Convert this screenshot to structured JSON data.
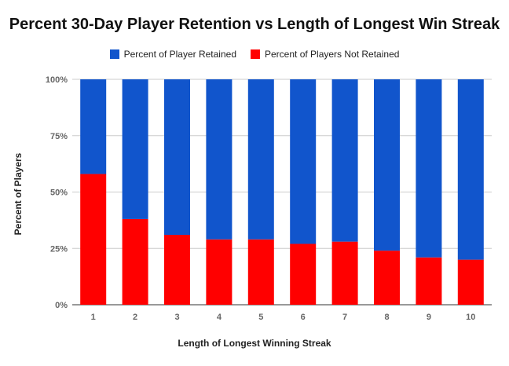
{
  "chart_data": {
    "type": "bar",
    "stacked": true,
    "title": "Percent 30-Day Player Retention vs Length of Longest Win Streak",
    "xlabel": "Length of Longest Winning Streak",
    "ylabel": "Percent of Players",
    "categories": [
      "1",
      "2",
      "3",
      "4",
      "5",
      "6",
      "7",
      "8",
      "9",
      "10"
    ],
    "yticks": [
      "0%",
      "25%",
      "50%",
      "75%",
      "100%"
    ],
    "ylim": [
      0,
      100
    ],
    "grid": true,
    "legend_position": "top",
    "series": [
      {
        "name": "Percent of Player Retained",
        "color": "#1155cc",
        "values": [
          42,
          62,
          69,
          71,
          71,
          73,
          72,
          76,
          79,
          80
        ]
      },
      {
        "name": "Percent of Players Not Retained",
        "color": "#ff0000",
        "values": [
          58,
          38,
          31,
          29,
          29,
          27,
          28,
          24,
          21,
          20
        ]
      }
    ]
  }
}
